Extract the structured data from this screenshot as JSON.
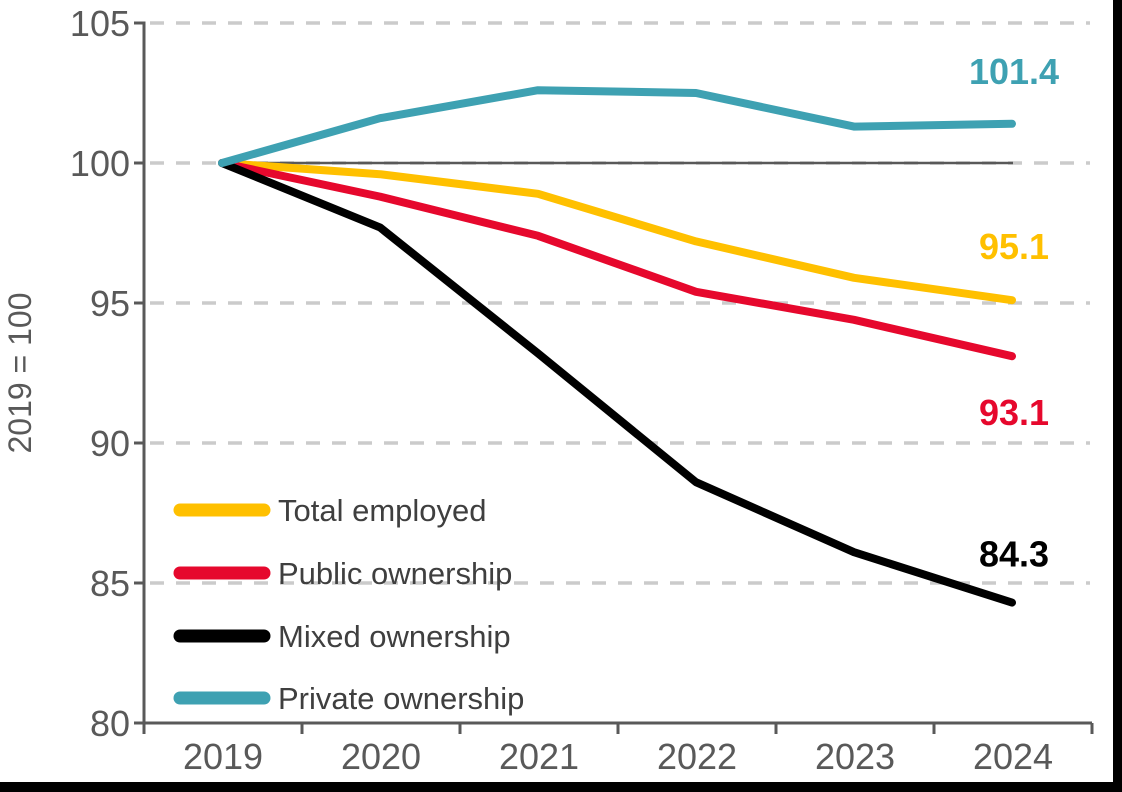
{
  "chart_data": {
    "type": "line",
    "title": "",
    "ylabel": "2019 = 100",
    "xlabel": "",
    "categories": [
      "2019",
      "2020",
      "2021",
      "2022",
      "2023",
      "2024"
    ],
    "series": [
      {
        "name": "Total employed",
        "color": "#FFC000",
        "values": [
          100,
          99.6,
          98.9,
          97.2,
          95.9,
          95.1
        ],
        "end_label": "95.1"
      },
      {
        "name": "Public ownership",
        "color": "#E6082D",
        "values": [
          100,
          98.8,
          97.4,
          95.4,
          94.4,
          93.1
        ],
        "end_label": "93.1"
      },
      {
        "name": "Mixed ownership",
        "color": "#000000",
        "values": [
          100,
          97.7,
          93.2,
          88.6,
          86.1,
          84.3
        ],
        "end_label": "84.3"
      },
      {
        "name": "Private ownership",
        "color": "#3EA1B2",
        "values": [
          100,
          101.6,
          102.6,
          102.5,
          101.3,
          101.4
        ],
        "end_label": "101.4"
      }
    ],
    "ylim": [
      80,
      105
    ],
    "yticks": [
      80,
      85,
      90,
      95,
      100,
      105
    ],
    "reference_line_y": 100,
    "grid": true,
    "grid_style": "dashed",
    "legend_position": "inside-bottom-left",
    "axis_color": "#595959",
    "grid_color": "#CBCBCB",
    "legend_text_color": "#3F3F3F"
  }
}
